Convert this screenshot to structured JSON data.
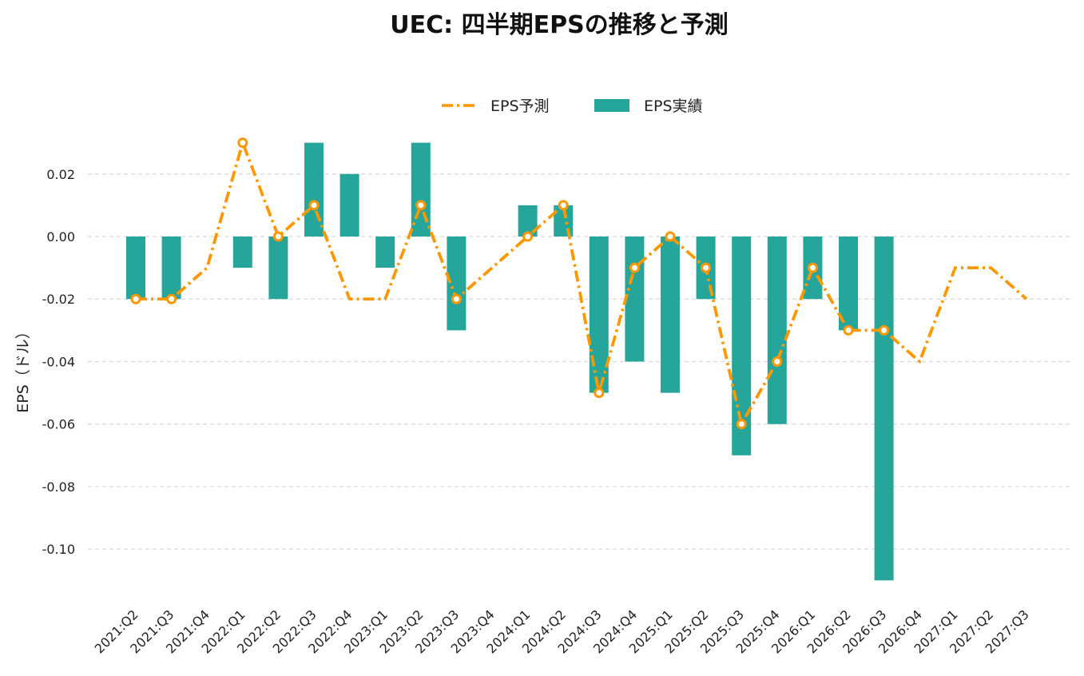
{
  "chart_data": {
    "type": "bar",
    "title": "UEC: 四半期EPSの推移と予測",
    "xlabel": "",
    "ylabel": "EPS（ドル）",
    "ylim": [
      -0.12,
      0.03
    ],
    "yticks": [
      "0.02",
      "0.00",
      "-0.02",
      "-0.04",
      "-0.06",
      "-0.08",
      "-0.10"
    ],
    "ytick_values": [
      0.02,
      0.0,
      -0.02,
      -0.04,
      -0.06,
      -0.08,
      -0.1
    ],
    "grid": true,
    "legend_position": "top-center",
    "categories": [
      "2021:Q2",
      "2021:Q3",
      "2021:Q4",
      "2022:Q1",
      "2022:Q2",
      "2022:Q3",
      "2022:Q4",
      "2023:Q1",
      "2023:Q2",
      "2023:Q3",
      "2023:Q4",
      "2024:Q1",
      "2024:Q2",
      "2024:Q3",
      "2024:Q4",
      "2025:Q1",
      "2025:Q2",
      "2025:Q3",
      "2025:Q4",
      "2026:Q1",
      "2026:Q2",
      "2026:Q3",
      "2026:Q4",
      "2027:Q1",
      "2027:Q2",
      "2027:Q3"
    ],
    "series": [
      {
        "name": "EPS予測",
        "type": "line",
        "color": "#FF9800",
        "values": [
          -0.02,
          -0.02,
          -0.01,
          0.03,
          0.0,
          0.01,
          -0.02,
          -0.02,
          0.01,
          -0.02,
          -0.01,
          0.0,
          0.01,
          -0.05,
          -0.01,
          0.0,
          -0.01,
          -0.06,
          -0.04,
          -0.01,
          -0.03,
          -0.03,
          -0.04,
          -0.01,
          -0.01,
          -0.02
        ],
        "marked": [
          true,
          true,
          false,
          true,
          true,
          true,
          false,
          false,
          true,
          true,
          false,
          true,
          true,
          true,
          true,
          true,
          true,
          true,
          true,
          true,
          true,
          true,
          false,
          false,
          false,
          false
        ]
      },
      {
        "name": "EPS実績",
        "type": "bar",
        "color": "#26A69A",
        "values": [
          -0.02,
          -0.02,
          null,
          -0.01,
          -0.02,
          0.03,
          0.02,
          -0.01,
          0.03,
          -0.03,
          null,
          0.01,
          0.01,
          -0.05,
          -0.04,
          -0.05,
          -0.02,
          -0.07,
          -0.06,
          -0.02,
          -0.03,
          -0.11,
          null,
          null,
          null,
          null
        ]
      }
    ]
  }
}
